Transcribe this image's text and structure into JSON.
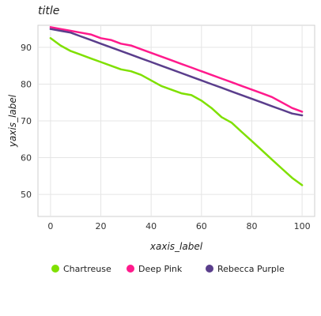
{
  "chart_data": {
    "type": "line",
    "title": "title",
    "xlabel": "xaxis_label",
    "ylabel": "yaxis_label",
    "xlim": [
      -5,
      105
    ],
    "ylim": [
      44,
      96
    ],
    "x_ticks": [
      0,
      20,
      40,
      60,
      80,
      100
    ],
    "y_ticks": [
      50,
      60,
      70,
      80,
      90
    ],
    "grid": true,
    "legend_position": "bottom",
    "series": [
      {
        "name": "Chartreuse",
        "color": "#7FE000",
        "x": [
          0,
          4,
          8,
          12,
          16,
          20,
          24,
          28,
          32,
          36,
          40,
          44,
          48,
          52,
          56,
          60,
          64,
          68,
          72,
          76,
          80,
          84,
          88,
          92,
          96,
          100
        ],
        "y": [
          92.5,
          90.5,
          89.0,
          88.0,
          87.0,
          86.0,
          85.0,
          84.0,
          83.5,
          82.5,
          81.0,
          79.5,
          78.5,
          77.5,
          77.0,
          75.5,
          73.5,
          71.0,
          69.5,
          67.0,
          64.5,
          62.0,
          59.5,
          57.0,
          54.5,
          52.5
        ]
      },
      {
        "name": "Deep Pink",
        "color": "#FF1A8C",
        "x": [
          0,
          4,
          8,
          12,
          16,
          20,
          24,
          28,
          32,
          36,
          40,
          44,
          48,
          52,
          56,
          60,
          64,
          68,
          72,
          76,
          80,
          84,
          88,
          92,
          96,
          100
        ],
        "y": [
          95.5,
          95.0,
          94.5,
          94.0,
          93.5,
          92.5,
          92.0,
          91.0,
          90.5,
          89.5,
          88.5,
          87.5,
          86.5,
          85.5,
          84.5,
          83.5,
          82.5,
          81.5,
          80.5,
          79.5,
          78.5,
          77.5,
          76.5,
          75.0,
          73.5,
          72.5
        ]
      },
      {
        "name": "Rebecca Purple",
        "color": "#5A3E8C",
        "x": [
          0,
          4,
          8,
          12,
          16,
          20,
          24,
          28,
          32,
          36,
          40,
          44,
          48,
          52,
          56,
          60,
          64,
          68,
          72,
          76,
          80,
          84,
          88,
          92,
          96,
          100
        ],
        "y": [
          95.0,
          94.5,
          94.0,
          93.0,
          92.0,
          91.0,
          90.0,
          89.0,
          88.0,
          87.0,
          86.0,
          85.0,
          84.0,
          83.0,
          82.0,
          81.0,
          80.0,
          79.0,
          78.0,
          77.0,
          76.0,
          75.0,
          74.0,
          73.0,
          72.0,
          71.5
        ]
      }
    ]
  }
}
